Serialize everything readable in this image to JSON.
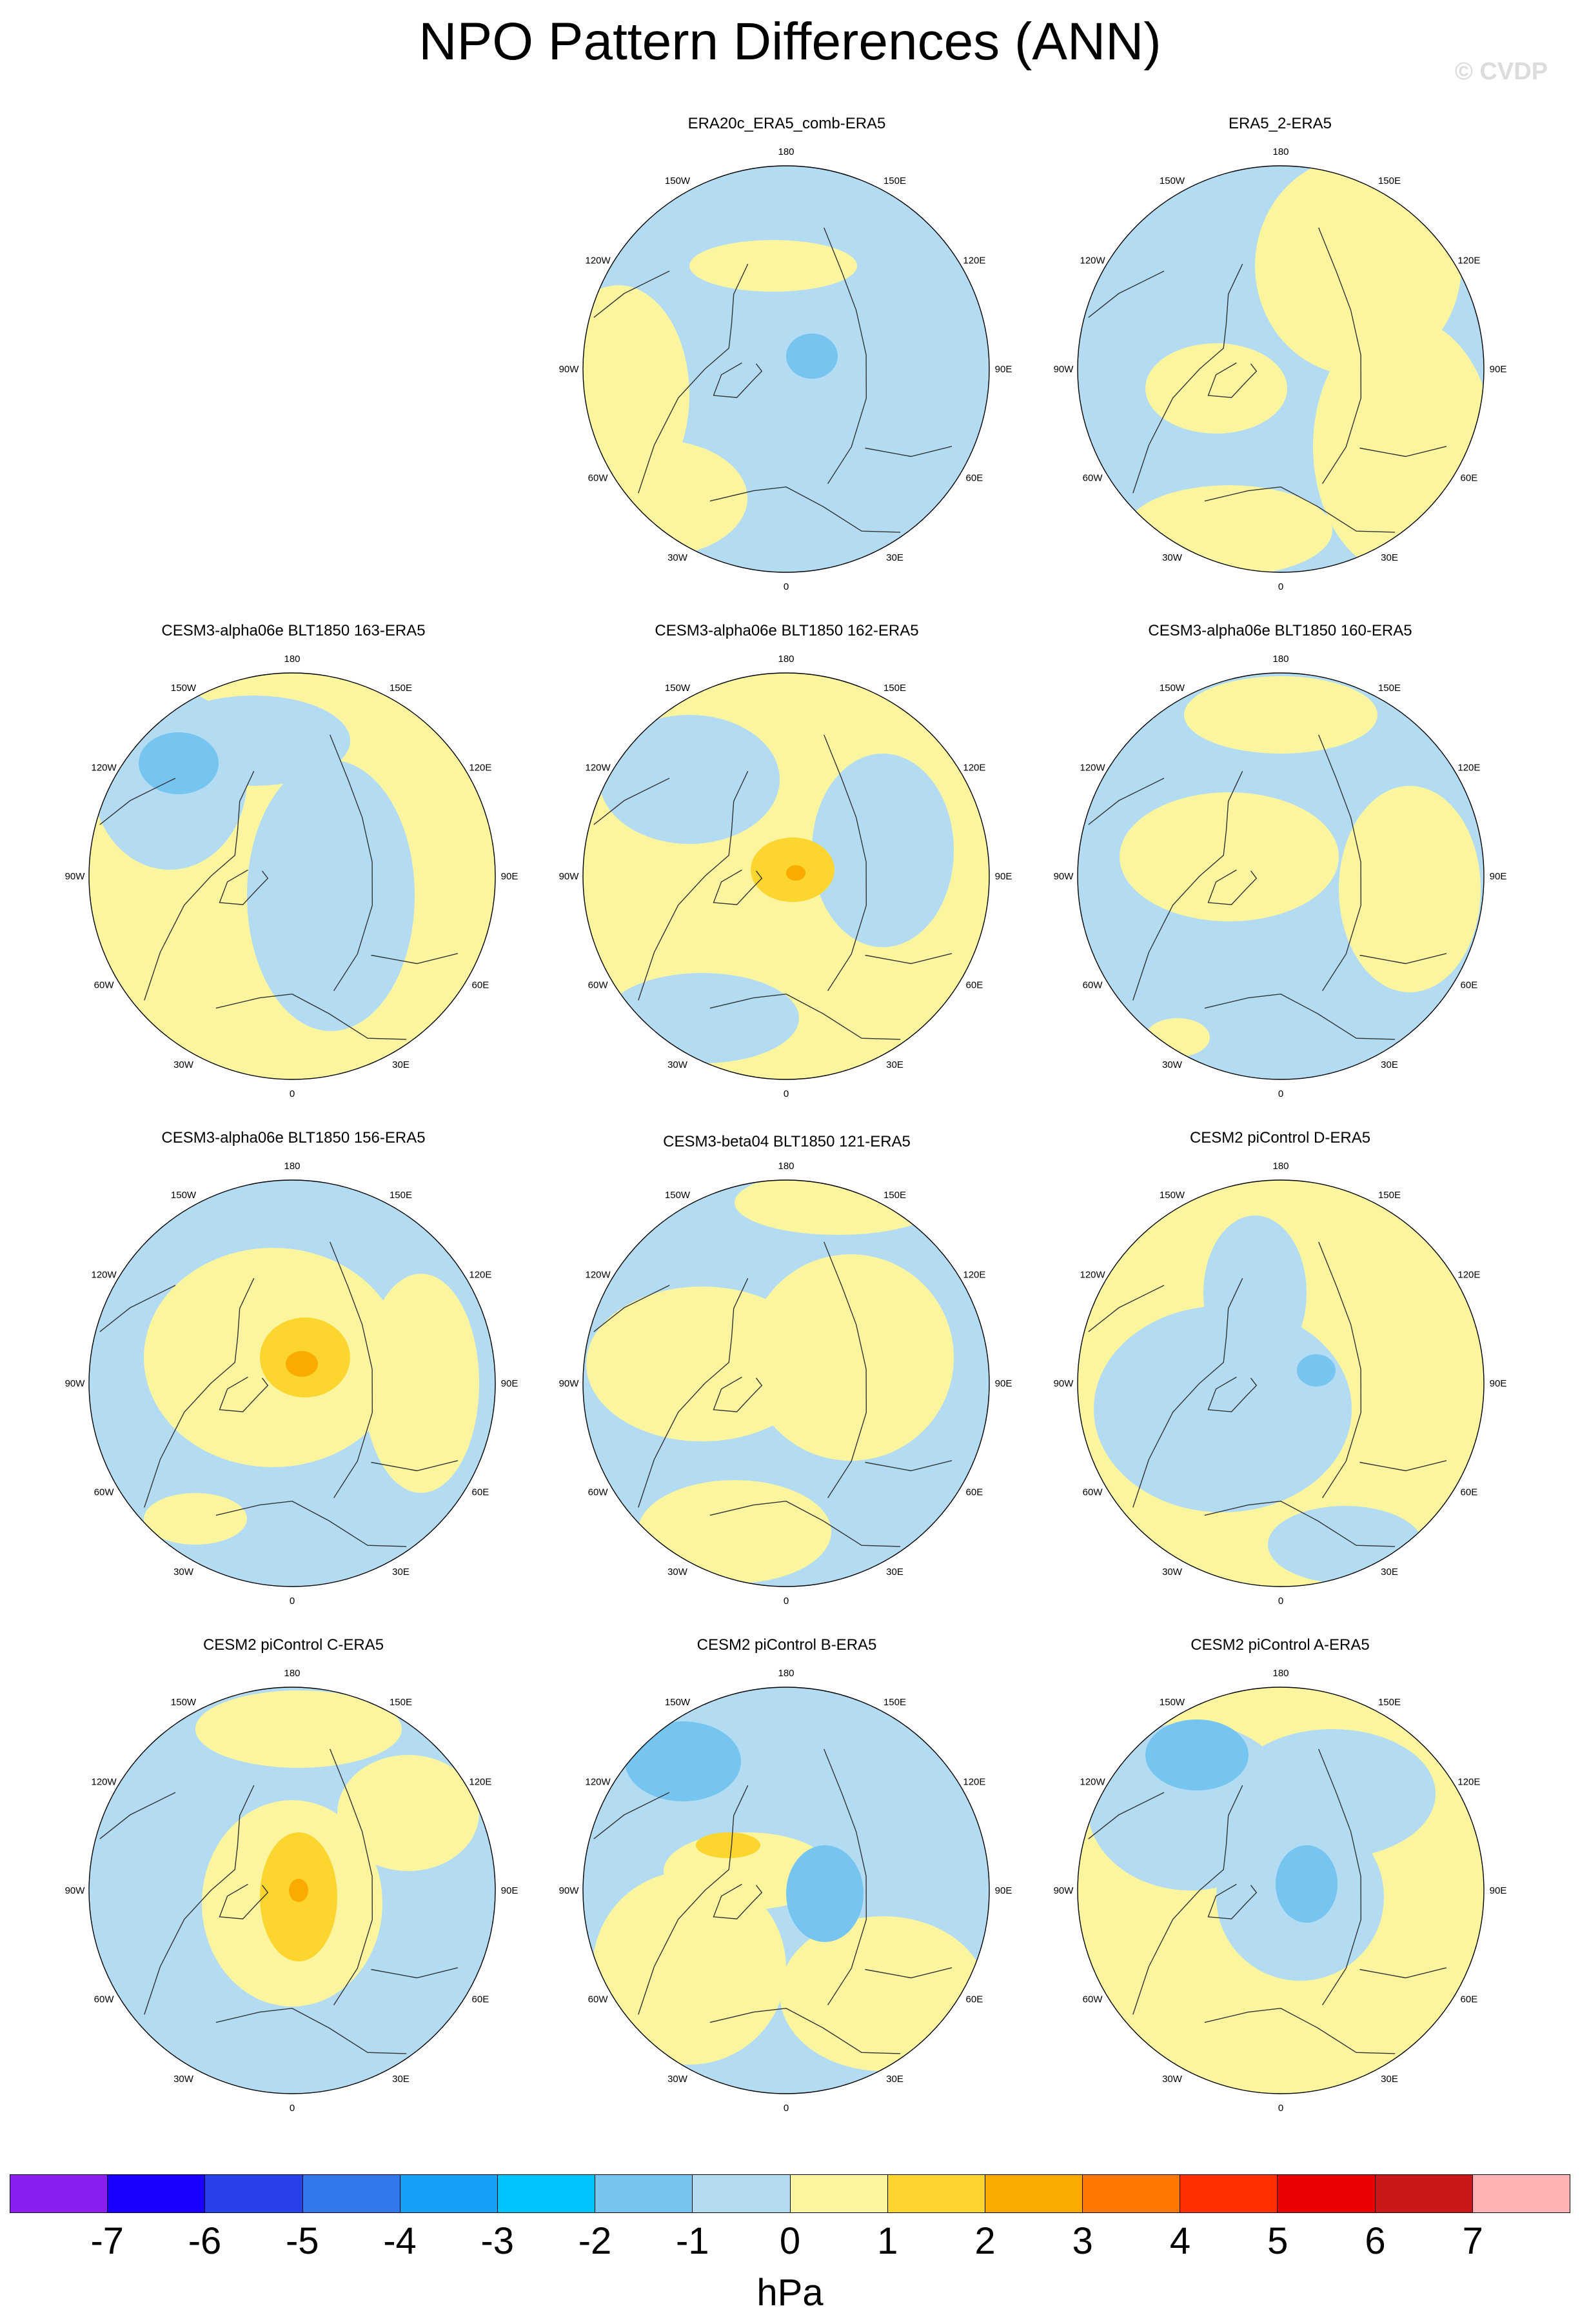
{
  "title": "NPO Pattern Differences (ANN)",
  "watermark": "© CVDP",
  "longitude_labels": [
    "180",
    "150E",
    "120E",
    "90E",
    "60E",
    "30E",
    "0",
    "30W",
    "60W",
    "90W",
    "120W",
    "150W"
  ],
  "colors": {
    "negative_fill": "#b3dcf2",
    "positive_fill": "#fbf5a0",
    "neg1_fill": "#76c4f0",
    "pos1_fill": "#fcd62e",
    "pos2_fill": "#fbaa00",
    "coastline": "#333333"
  },
  "panels": [
    {
      "title": "ERA20c_ERA5_comb-ERA5",
      "base": "negative"
    },
    {
      "title": "ERA5_2-ERA5",
      "base": "negative"
    },
    {
      "title": "CESM3-alpha06e BLT1850 163-ERA5",
      "base": "positive"
    },
    {
      "title": "CESM3-alpha06e BLT1850 162-ERA5",
      "base": "positive"
    },
    {
      "title": "CESM3-alpha06e BLT1850 160-ERA5",
      "base": "negative"
    },
    {
      "title": "CESM3-alpha06e BLT1850 156-ERA5",
      "base": "negative"
    },
    {
      "title": "CESM3-beta04 BLT1850 121-ERA5",
      "base": "negative"
    },
    {
      "title": "CESM2 piControl D-ERA5",
      "base": "positive"
    },
    {
      "title": "CESM2 piControl C-ERA5",
      "base": "negative"
    },
    {
      "title": "CESM2 piControl B-ERA5",
      "base": "negative"
    },
    {
      "title": "CESM2 piControl A-ERA5",
      "base": "positive"
    }
  ],
  "colorbar": {
    "colors": [
      "#8a1ef2",
      "#1900ff",
      "#2740ea",
      "#3478f0",
      "#169ffa",
      "#00c3fb",
      "#76c4f0",
      "#b3dcf2",
      "#fbf5a0",
      "#fcd62e",
      "#fbaa00",
      "#ff7600",
      "#ff2f00",
      "#ea0000",
      "#cc1718",
      "#ffb3b4"
    ],
    "labels": [
      "-7",
      "-6",
      "-5",
      "-4",
      "-3",
      "-2",
      "-1",
      "0",
      "1",
      "2",
      "3",
      "4",
      "5",
      "6",
      "7"
    ],
    "units": "hPa"
  }
}
